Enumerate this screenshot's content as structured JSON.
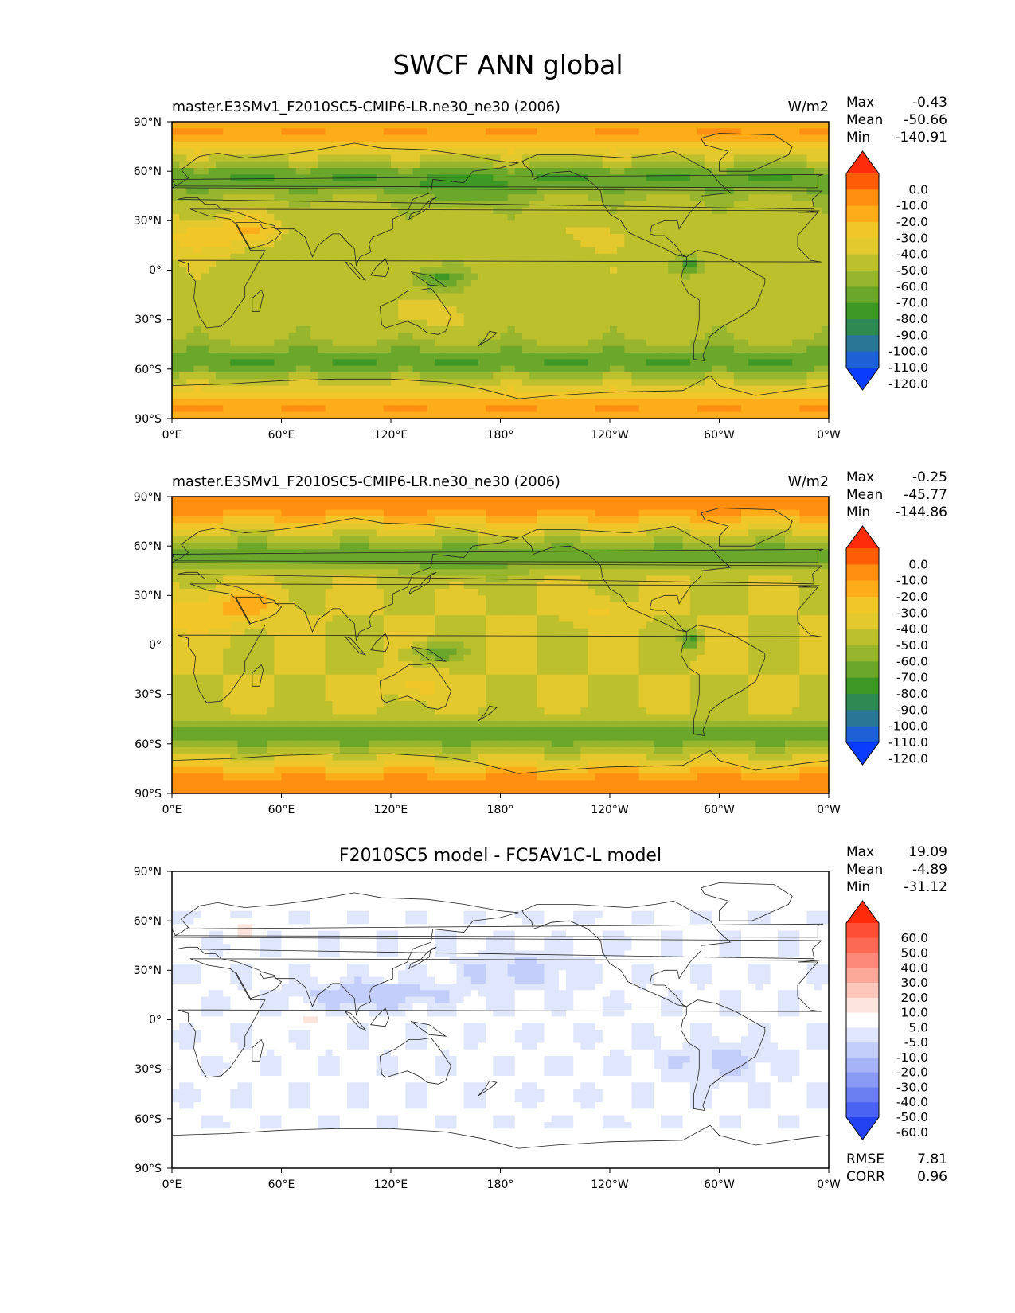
{
  "figure": {
    "title": "SWCF ANN global"
  },
  "map_ticks": {
    "lon": [
      "0°E",
      "60°E",
      "120°E",
      "180°",
      "120°W",
      "60°W",
      "0°W"
    ],
    "lat": [
      "90°N",
      "60°N",
      "30°N",
      "0°",
      "30°S",
      "60°S",
      "90°S"
    ]
  },
  "panels": [
    {
      "title": "master.E3SMv1_F2010SC5-CMIP6-LR.ne30_ne30 (2006)",
      "units": "W/m2",
      "stats": [
        {
          "label": "Max",
          "value": "-0.43"
        },
        {
          "label": "Mean",
          "value": "-50.66"
        },
        {
          "label": "Min",
          "value": "-140.91"
        }
      ],
      "colorbar": {
        "labels": [
          "0.0",
          "-10.0",
          "-20.0",
          "-30.0",
          "-40.0",
          "-50.0",
          "-60.0",
          "-70.0",
          "-80.0",
          "-90.0",
          "-100.0",
          "-110.0",
          "-120.0"
        ],
        "colors": [
          "#fe2c0a",
          "#fe5c06",
          "#fe8f10",
          "#fdac1a",
          "#f1c628",
          "#e3c92d",
          "#bcc02c",
          "#97b52d",
          "#6aa72a",
          "#3e9825",
          "#2e8a50",
          "#2a7696",
          "#1e60d5",
          "#0a3cfe"
        ]
      },
      "field": "model"
    },
    {
      "title": "master.E3SMv1_F2010SC5-CMIP6-LR.ne30_ne30 (2006)",
      "units": "W/m2",
      "stats": [
        {
          "label": "Max",
          "value": "-0.25"
        },
        {
          "label": "Mean",
          "value": "-45.77"
        },
        {
          "label": "Min",
          "value": "-144.86"
        }
      ],
      "colorbar": {
        "labels": [
          "0.0",
          "-10.0",
          "-20.0",
          "-30.0",
          "-40.0",
          "-50.0",
          "-60.0",
          "-70.0",
          "-80.0",
          "-90.0",
          "-100.0",
          "-110.0",
          "-120.0"
        ],
        "colors": [
          "#fe2c0a",
          "#fe5c06",
          "#fe8f10",
          "#fdac1a",
          "#f1c628",
          "#e3c92d",
          "#bcc02c",
          "#97b52d",
          "#6aa72a",
          "#3e9825",
          "#2e8a50",
          "#2a7696",
          "#1e60d5",
          "#0a3cfe"
        ]
      },
      "field": "reference"
    },
    {
      "title": "F2010SC5 model - FC5AV1C-L model",
      "units": "",
      "stats": [
        {
          "label": "Max",
          "value": "19.09"
        },
        {
          "label": "Mean",
          "value": "-4.89"
        },
        {
          "label": "Min",
          "value": "-31.12"
        }
      ],
      "colorbar": {
        "labels": [
          "60.0",
          "50.0",
          "40.0",
          "30.0",
          "20.0",
          "10.0",
          "5.0",
          "-5.0",
          "-10.0",
          "-20.0",
          "-30.0",
          "-40.0",
          "-50.0",
          "-60.0"
        ],
        "colors": [
          "#ff2a0a",
          "#fe4f36",
          "#fc6a55",
          "#fd8a78",
          "#fda99a",
          "#fdc6bb",
          "#fde4dd",
          "#ffffff",
          "#e0e6fc",
          "#c4cefb",
          "#a6b4f7",
          "#889af4",
          "#6b7ff3",
          "#4a63f2",
          "#2343f1"
        ]
      },
      "field": "difference",
      "extra_stats": [
        {
          "label": "RMSE",
          "value": "7.81"
        },
        {
          "label": "CORR",
          "value": "0.96"
        }
      ]
    }
  ]
}
